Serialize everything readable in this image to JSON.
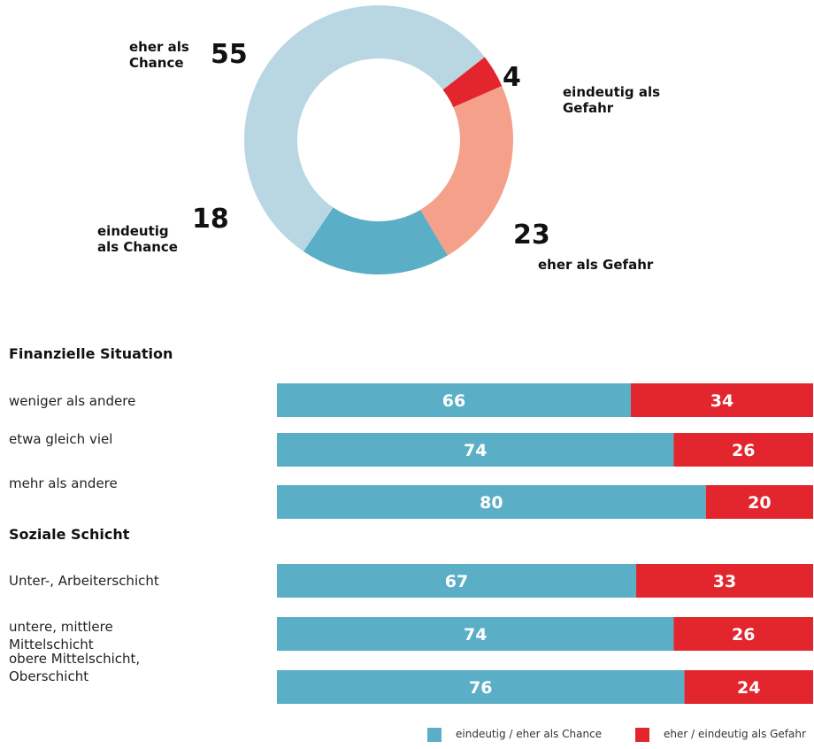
{
  "chart_data": [
    {
      "type": "donut",
      "categories": [
        "eindeutig als Gefahr",
        "eher als Gefahr",
        "eindeutig als Chance",
        "eher als Chance"
      ],
      "values": [
        4,
        23,
        18,
        55
      ],
      "colors": [
        "#e3262d",
        "#f4a08a",
        "#5aafc6",
        "#b8d7e3"
      ]
    },
    {
      "type": "stacked-hbar",
      "groups": [
        {
          "title": "Finanzielle Situation",
          "categories": [
            "weniger als andere",
            "etwa gleich viel",
            "mehr als andere"
          ]
        },
        {
          "title": "Soziale Schicht",
          "categories": [
            "Unter-, Arbeiterschicht",
            "untere, mittlere Mittelschicht",
            "obere Mittelschicht, Oberschicht"
          ]
        }
      ],
      "xlim": [
        0,
        100
      ],
      "series": [
        {
          "name": "eindeutig / eher als Chance",
          "color": "#5aafc6",
          "values": [
            66,
            74,
            80,
            67,
            74,
            76
          ]
        },
        {
          "name": "eher / eindeutig als Gefahr",
          "color": "#e3262d",
          "values": [
            34,
            26,
            20,
            33,
            26,
            24
          ]
        }
      ],
      "legend": "bottom-right"
    }
  ]
}
